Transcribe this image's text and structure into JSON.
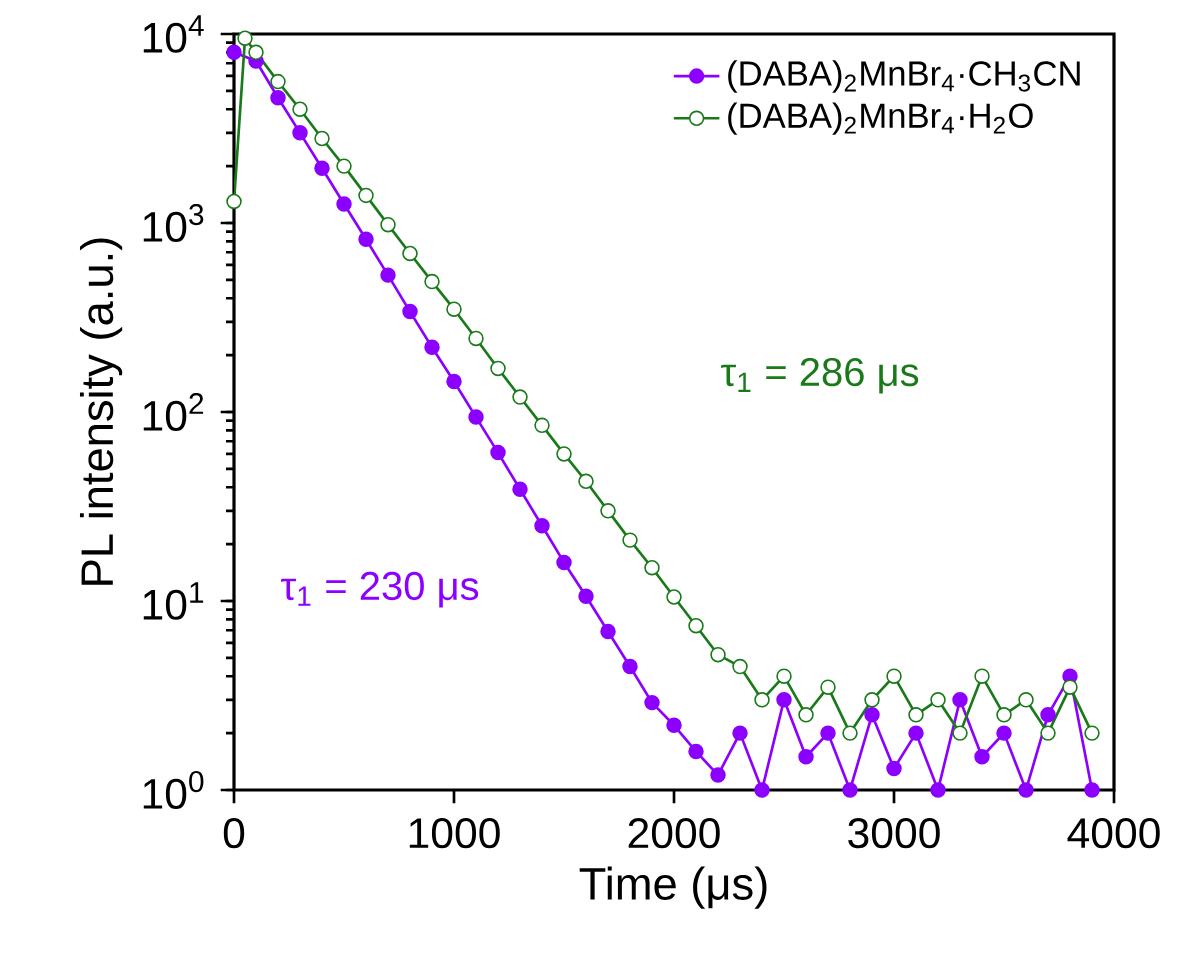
{
  "chart_data": {
    "type": "line",
    "xlabel": "Time (μs)",
    "ylabel": "PL intensity (a.u.)",
    "log": "y",
    "xlim": [
      0,
      4000
    ],
    "ylim": [
      1,
      10000
    ],
    "xticks": [
      0,
      1000,
      2000,
      3000,
      4000
    ],
    "yticks": [
      {
        "value": 1,
        "label": "10$^{0}$"
      },
      {
        "value": 10,
        "label": "10$^{1}$"
      },
      {
        "value": 100,
        "label": "10$^{2}$"
      },
      {
        "value": 1000,
        "label": "10$^{3}$"
      },
      {
        "value": 10000,
        "label": "10$^{4}$"
      }
    ],
    "legend": "top right",
    "marker": "circle",
    "line_style": "solid",
    "series": [
      {
        "name": "(DABA)$_{2}$MnBr$_{4}$·CH$_{3}$CN",
        "color": "#8b00ff",
        "x": [
          0,
          50,
          100,
          200,
          300,
          400,
          500,
          600,
          700,
          800,
          900,
          1000,
          1100,
          1200,
          1300,
          1400,
          1500,
          1600,
          1700,
          1800,
          1900,
          2000,
          2100,
          2200,
          2300,
          2400,
          2500,
          2600,
          2700,
          2800,
          2900,
          3000,
          3100,
          3200,
          3300,
          3400,
          3500,
          3600,
          3700,
          3800,
          3900
        ],
        "values": [
          8000,
          null,
          7200,
          4600,
          3000,
          1950,
          1260,
          820,
          530,
          340,
          220,
          145,
          94,
          61,
          39,
          25,
          16,
          10.6,
          6.9,
          4.5,
          2.9,
          2.2,
          1.6,
          1.2,
          2,
          1,
          3,
          1.5,
          2,
          1,
          2.5,
          1.3,
          2,
          1,
          3,
          1.5,
          2,
          1,
          2.5,
          4,
          1
        ]
      },
      {
        "name": "(DABA)$_{2}$MnBr$_{4}$·H$_{2}$O",
        "color": "#1a7a1a",
        "x": [
          0,
          50,
          100,
          200,
          300,
          400,
          500,
          600,
          700,
          800,
          900,
          1000,
          1100,
          1200,
          1300,
          1400,
          1500,
          1600,
          1700,
          1800,
          1900,
          2000,
          2100,
          2200,
          2300,
          2400,
          2500,
          2600,
          2700,
          2800,
          2900,
          3000,
          3100,
          3200,
          3300,
          3400,
          3500,
          3600,
          3700,
          3800,
          3900
        ],
        "values": [
          1300,
          9500,
          8000,
          5600,
          4000,
          2800,
          2000,
          1400,
          980,
          690,
          490,
          350,
          245,
          170,
          120,
          85,
          60,
          43,
          30,
          21,
          15,
          10.5,
          7.4,
          5.2,
          4.5,
          3,
          4,
          2.5,
          3.5,
          2,
          3,
          4,
          2.5,
          3,
          2,
          4,
          2.5,
          3,
          2,
          3.5,
          2
        ]
      }
    ],
    "annotations": [
      "τ$_{1}$ = 230 μs",
      "τ$_{1}$ = 286 μs"
    ]
  }
}
